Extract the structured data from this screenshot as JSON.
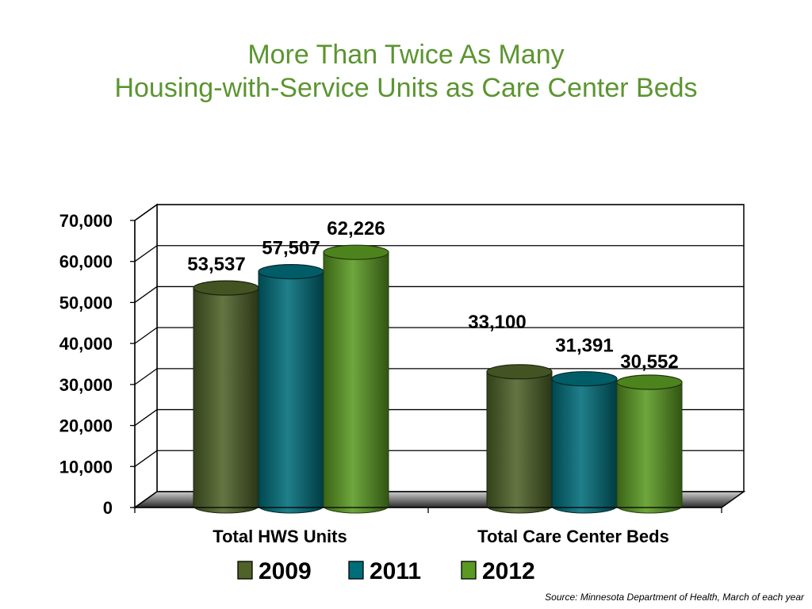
{
  "slide": {
    "title_line1": "More Than Twice As Many",
    "title_line2": "Housing-with-Service Units as Care Center Beds",
    "source": "Source: Minnesota Department of Health, March of each year"
  },
  "chart_data": {
    "type": "bar",
    "categories": [
      "Total HWS Units",
      "Total Care Center Beds"
    ],
    "series": [
      {
        "name": "2009",
        "values": [
          53537,
          33100
        ],
        "labels": [
          "53,537",
          "33,100"
        ],
        "color": "#4f6228"
      },
      {
        "name": "2011",
        "values": [
          57507,
          31391
        ],
        "labels": [
          "57,507",
          "31,391"
        ],
        "color": "#006d7a"
      },
      {
        "name": "2012",
        "values": [
          62226,
          30552
        ],
        "labels": [
          "62,226",
          "30,552"
        ],
        "color": "#5a9a22"
      }
    ],
    "yticks": [
      "0",
      "10,000",
      "20,000",
      "30,000",
      "40,000",
      "50,000",
      "60,000",
      "70,000"
    ],
    "ylim": [
      0,
      70000
    ],
    "grid": true,
    "legend": "bottom",
    "style": "3d-cylinder"
  }
}
